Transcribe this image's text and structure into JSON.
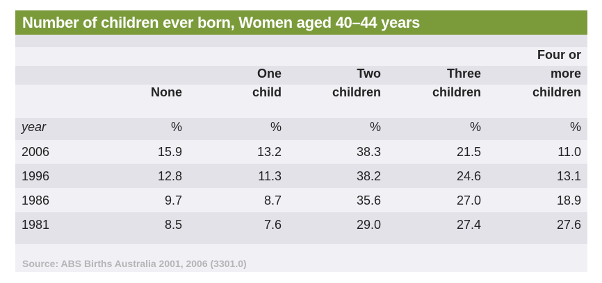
{
  "title": "Number of children ever born, Women aged 40–44 years",
  "chart_data": {
    "type": "table",
    "title": "Number of children ever born, Women aged 40–44 years",
    "row_header_label": "year",
    "columns": [
      {
        "lines": [
          "",
          "",
          "None"
        ],
        "unit": "%"
      },
      {
        "lines": [
          "",
          "One",
          "child"
        ],
        "unit": "%"
      },
      {
        "lines": [
          "",
          "Two",
          "children"
        ],
        "unit": "%"
      },
      {
        "lines": [
          "",
          "Three",
          "children"
        ],
        "unit": "%"
      },
      {
        "lines": [
          "Four or",
          "more",
          "children"
        ],
        "unit": "%"
      }
    ],
    "rows": [
      {
        "year": "2006",
        "values": [
          "15.9",
          "13.2",
          "38.3",
          "21.5",
          "11.0"
        ]
      },
      {
        "year": "1996",
        "values": [
          "12.8",
          "11.3",
          "38.2",
          "24.6",
          "13.1"
        ]
      },
      {
        "year": "1986",
        "values": [
          "9.7",
          "8.7",
          "35.6",
          "27.0",
          "18.9"
        ]
      },
      {
        "year": "1981",
        "values": [
          "8.5",
          "7.6",
          "29.0",
          "27.4",
          "27.6"
        ]
      }
    ]
  },
  "source": "Source: ABS Births Australia 2001, 2006 (3301.0)"
}
